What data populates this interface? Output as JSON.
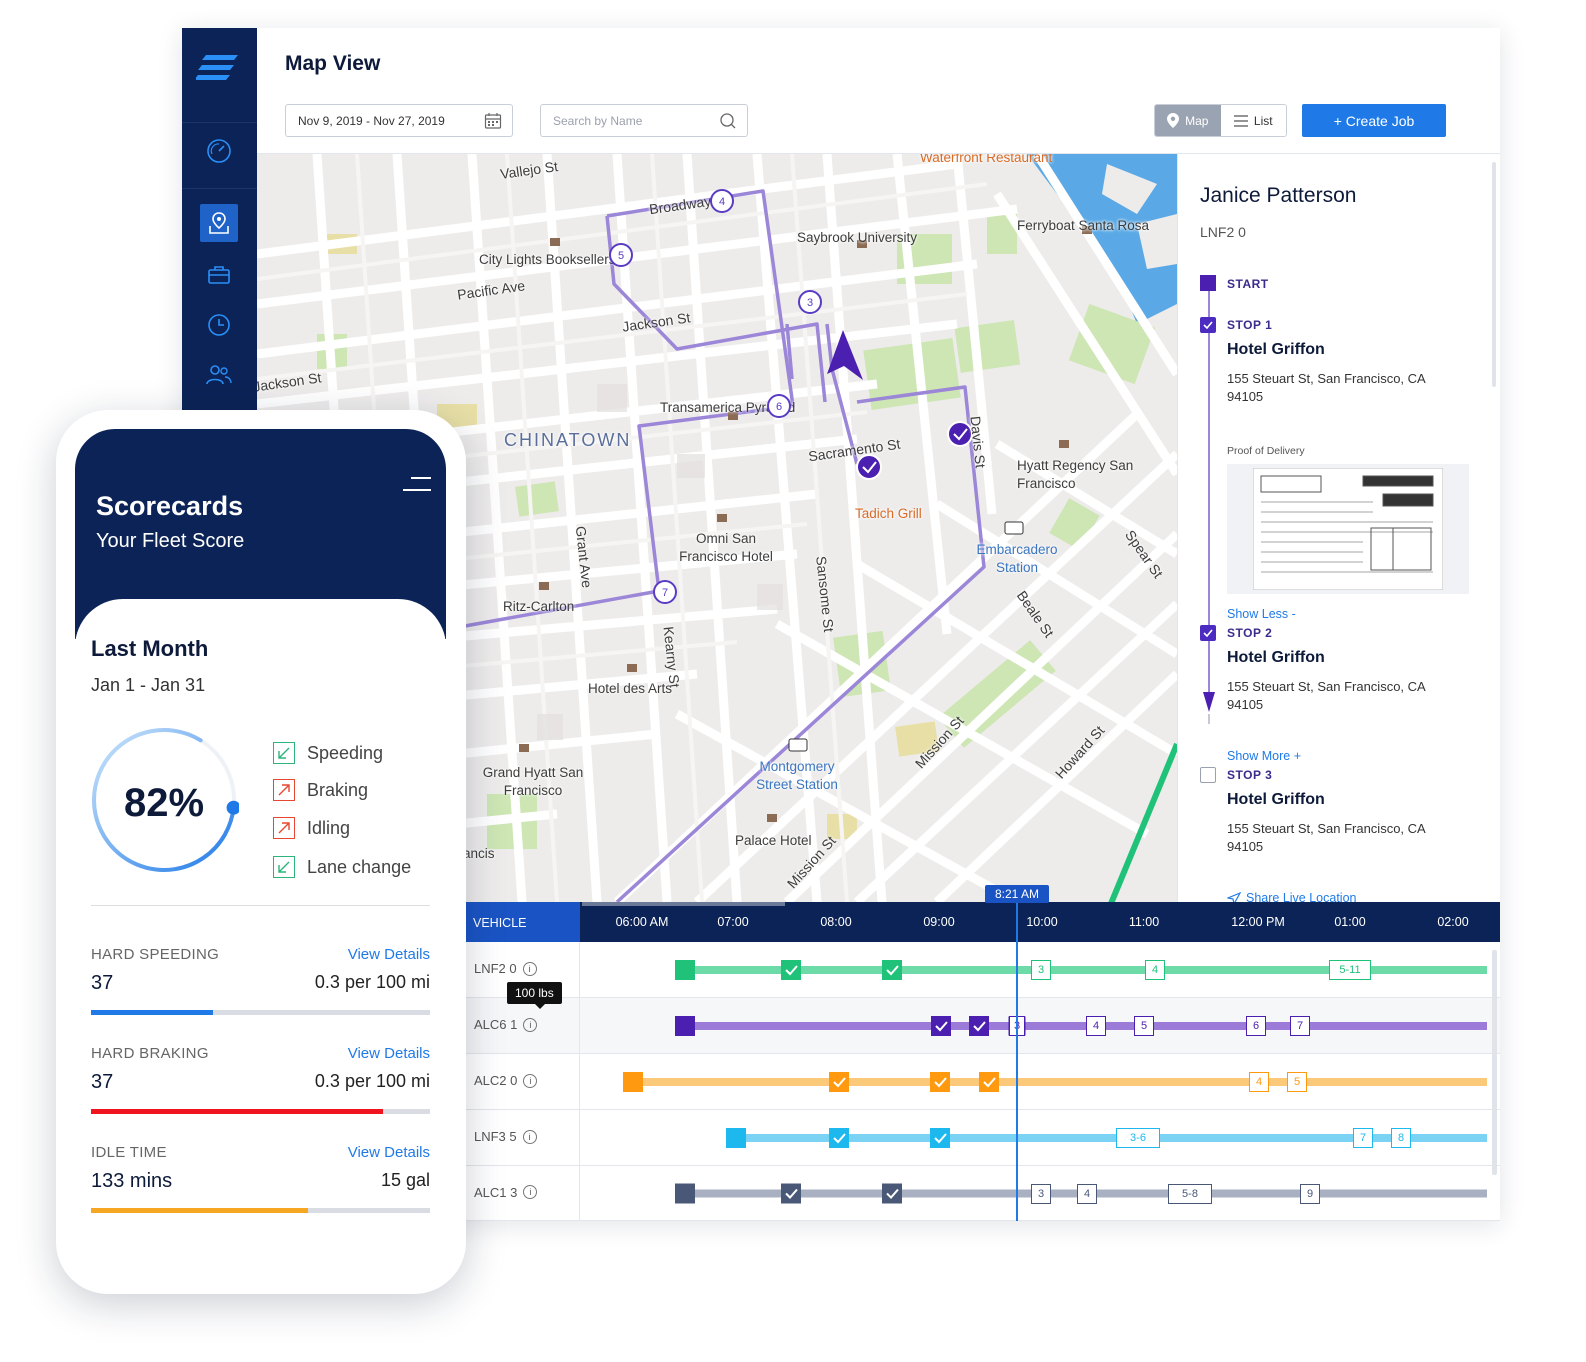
{
  "app": {
    "title": "Map View",
    "date_range": "Nov 9, 2019 - Nov 27, 2019",
    "search_placeholder": "Search by Name",
    "view_toggle": {
      "map": "Map",
      "list": "List"
    },
    "create_button": "+ Create Job"
  },
  "sidebar": {
    "items": [
      {
        "name": "dashboard",
        "icon": "speedometer-icon"
      },
      {
        "name": "map",
        "icon": "map-pin-icon",
        "active": true
      },
      {
        "name": "jobs",
        "icon": "briefcase-icon"
      },
      {
        "name": "history",
        "icon": "clock-icon"
      },
      {
        "name": "people",
        "icon": "users-icon"
      }
    ]
  },
  "map": {
    "streets": [
      "Vallejo St",
      "Broadway",
      "Pacific Ave",
      "Jackson St",
      "Jackson St",
      "Sacramento St",
      "Davis St",
      "Grant Ave",
      "Kearny St",
      "Sansome St",
      "Beale St",
      "Spear St",
      "Mission St",
      "Mission St",
      "Howard St"
    ],
    "places": [
      "Waterfront Restaurant",
      "Saybrook University",
      "Ferryboat Santa Rosa",
      "City Lights Booksellers",
      "Transamerica Pyramid",
      "CHINATOWN",
      "Hyatt Regency San Francisco",
      "Tadich Grill",
      "Omni San Francisco Hotel",
      "Embarcadero Station",
      "Ritz-Carlton",
      "Hotel des Arts",
      "Grand Hyatt San Francisco",
      "Montgomery Street Station",
      "Palace Hotel",
      "ancis"
    ],
    "markers": [
      "3",
      "4",
      "5",
      "6",
      "7"
    ],
    "colors": {
      "route": "#9b86d8",
      "marker": "#5a3bc4",
      "water": "#5aa9e6",
      "park": "#cde6b4"
    }
  },
  "driver": {
    "name": "Janice Patterson",
    "code": "LNF2 0",
    "start_label": "START",
    "stops": [
      {
        "label": "STOP 1",
        "name": "Hotel Griffon",
        "address": "155 Steuart St, San Francisco, CA 94105",
        "pod_label": "Proof of Delivery",
        "link": "Show Less -",
        "status": "done"
      },
      {
        "label": "STOP 2",
        "name": "Hotel Griffon",
        "address": "155 Steuart St, San Francisco, CA 94105",
        "link": "Show More +",
        "status": "done"
      },
      {
        "label": "STOP 3",
        "name": "Hotel Griffon",
        "address": "155 Steuart St, San Francisco, CA 94105",
        "link": "Share Live Location",
        "status": "pending"
      }
    ]
  },
  "timeline": {
    "vehicle_header": "VEHICLE",
    "ticks": [
      "06:00 AM",
      "07:00",
      "08:00",
      "09:00",
      "10:00",
      "11:00",
      "12:00 PM",
      "01:00",
      "02:00"
    ],
    "now": "8:21 AM",
    "tooltip": "100 lbs",
    "rows": [
      {
        "vehicle": "LNF2 0",
        "color": "#6ddba8",
        "dark": "#20c27a",
        "stops": [
          "3",
          "4",
          "5-11"
        ]
      },
      {
        "vehicle": "ALC6 1",
        "color": "#9b7ad8",
        "dark": "#4b1fb0",
        "stops": [
          "3",
          "4",
          "5",
          "6",
          "7"
        ]
      },
      {
        "vehicle": "ALC2 0",
        "color": "#fcc97a",
        "dark": "#ff9a10",
        "stops": [
          "4",
          "5"
        ]
      },
      {
        "vehicle": "LNF3 5",
        "color": "#7ad3f5",
        "dark": "#1cb8ee",
        "stops": [
          "3-6",
          "7",
          "8"
        ]
      },
      {
        "vehicle": "ALC1 3",
        "color": "#a9b0c2",
        "dark": "#4a5878",
        "stops": [
          "3",
          "4",
          "5-8",
          "9"
        ]
      }
    ]
  },
  "scorecard": {
    "title": "Scorecards",
    "subtitle": "Your Fleet Score",
    "period_title": "Last Month",
    "period_range": "Jan 1 - Jan 31",
    "score": "82%",
    "score_fraction": 0.82,
    "metrics": [
      {
        "label": "Speeding",
        "trend": "down",
        "color": "#2cb57a"
      },
      {
        "label": "Braking",
        "trend": "up",
        "color": "#e8472f"
      },
      {
        "label": "Idling",
        "trend": "up",
        "color": "#e8472f"
      },
      {
        "label": "Lane change",
        "trend": "down",
        "color": "#2cb57a"
      }
    ],
    "stats": [
      {
        "label": "HARD SPEEDING",
        "link": "View Details",
        "value": "37",
        "rate": "0.3 per 100 mi",
        "fraction": 0.36,
        "color": "#1f7ae8"
      },
      {
        "label": "HARD BRAKING",
        "link": "View Details",
        "value": "37",
        "rate": "0.3 per 100 mi",
        "fraction": 0.86,
        "color": "#f0141e"
      },
      {
        "label": "IDLE TIME",
        "link": "View Details",
        "value": "133 mins",
        "rate": "15 gal",
        "fraction": 0.64,
        "color": "#f5a623"
      }
    ]
  }
}
